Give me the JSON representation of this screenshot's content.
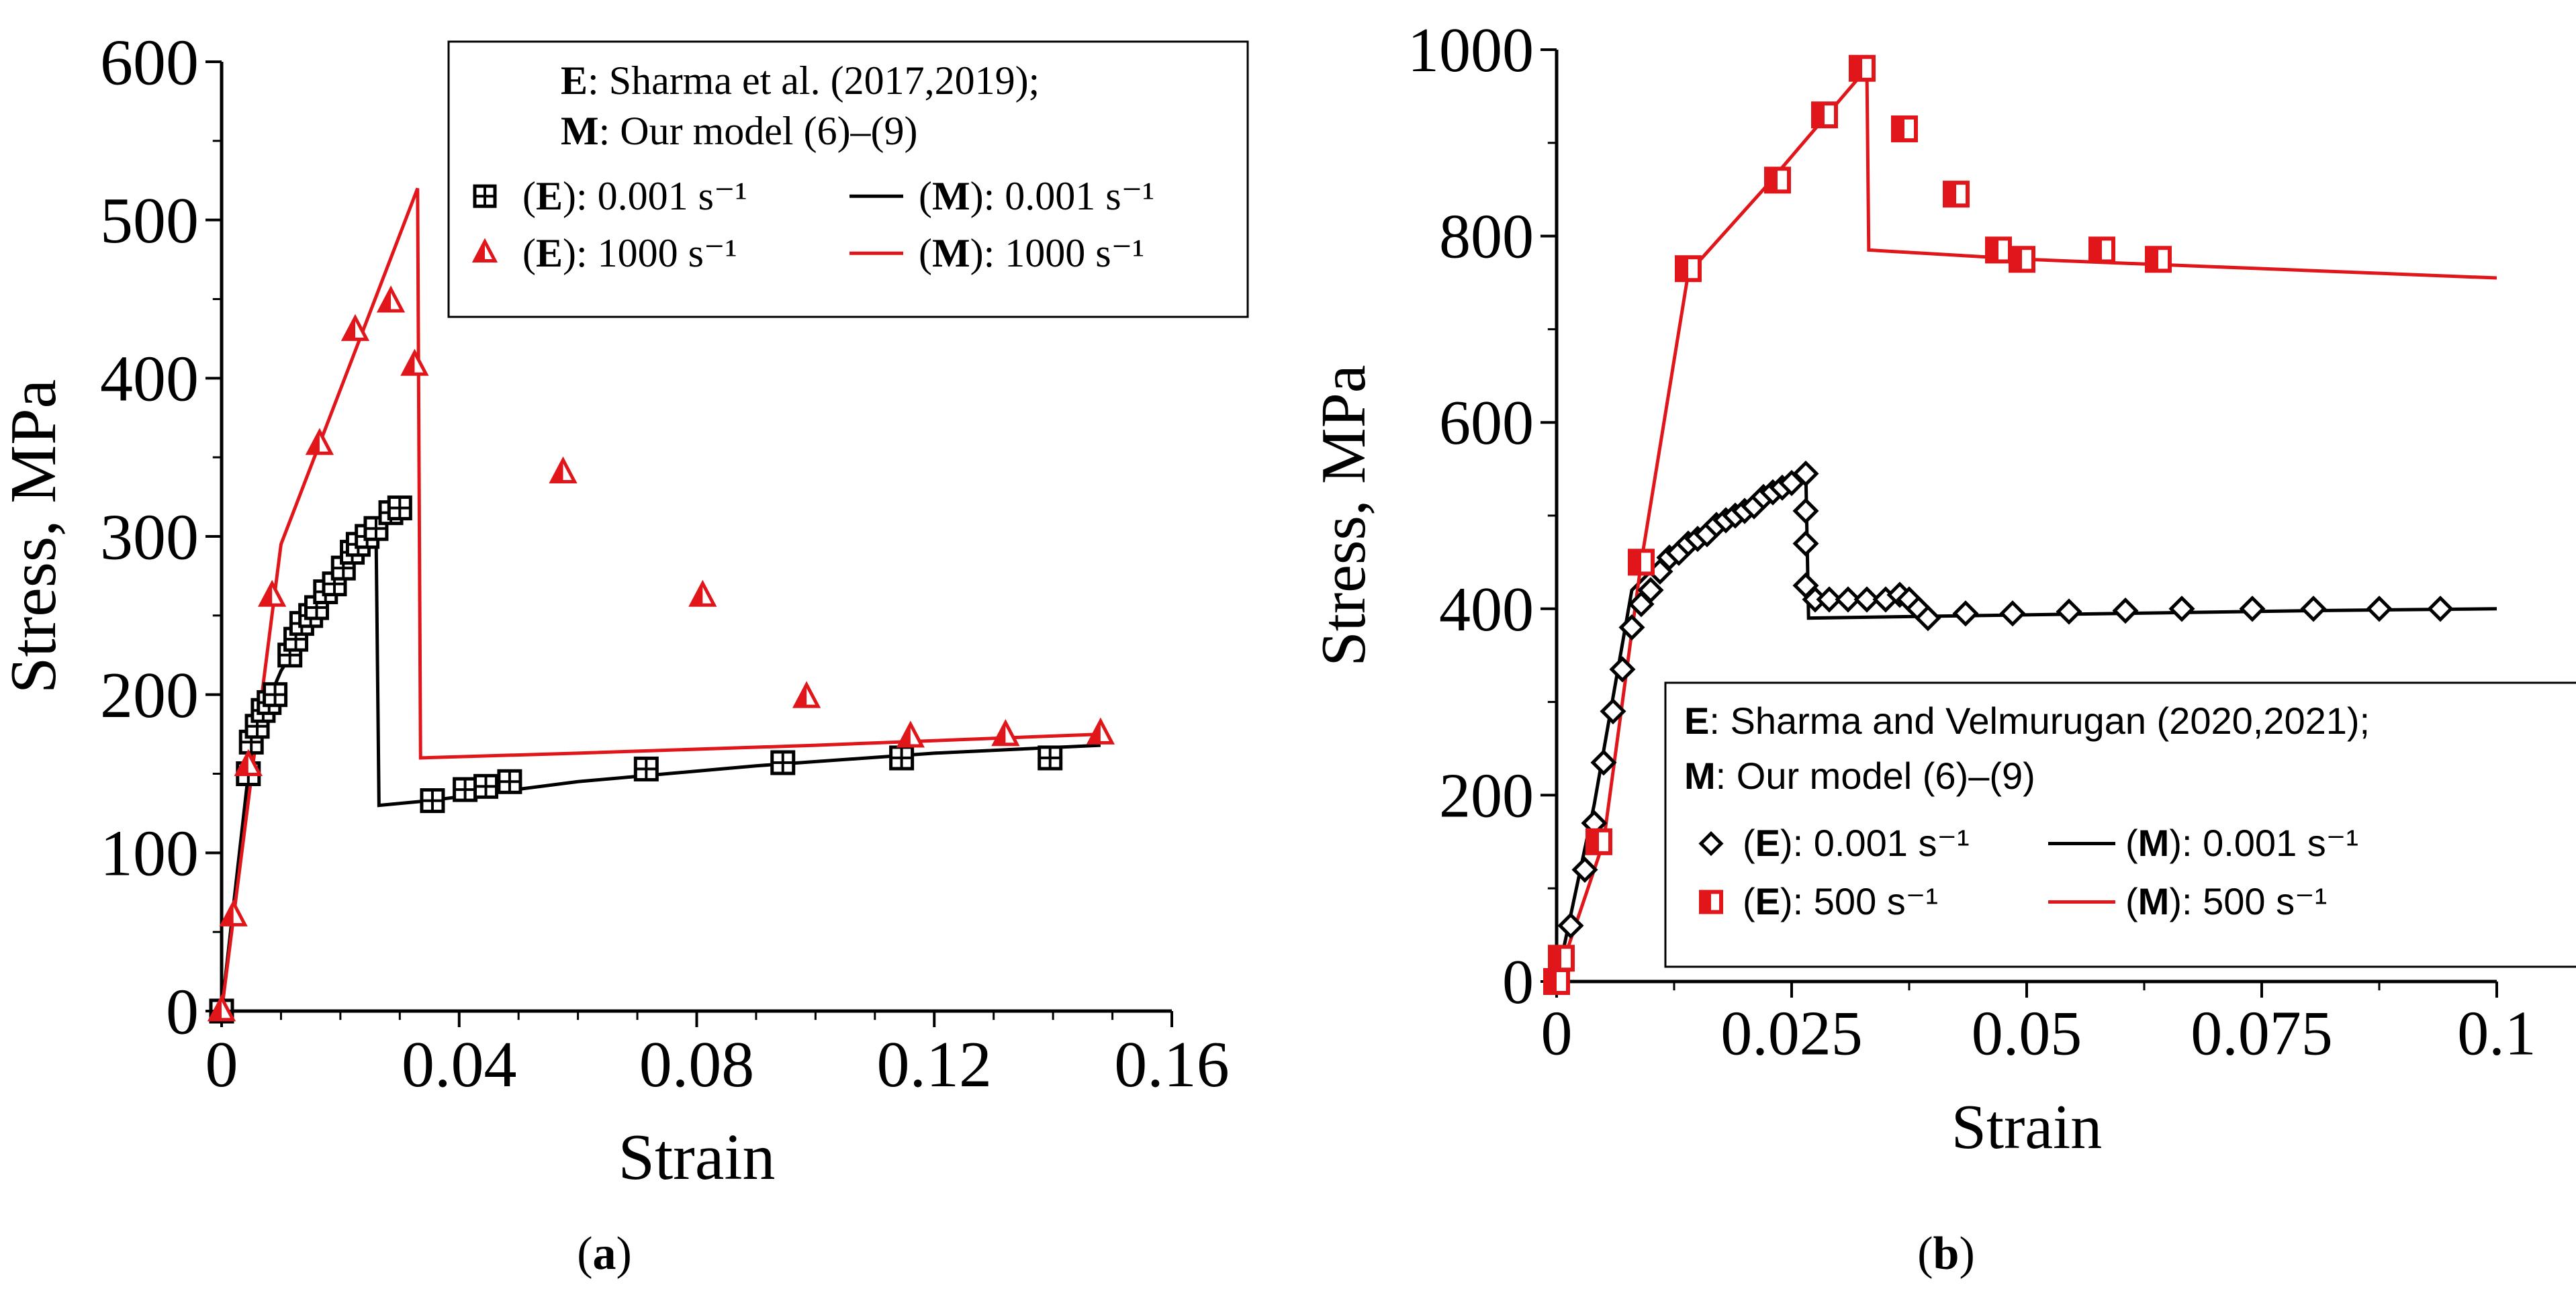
{
  "chart_data": [
    {
      "type": "scatter",
      "panel_label": "(a)",
      "xlabel": "Strain",
      "ylabel": "Stress, MPa",
      "xlim": [
        0,
        0.16
      ],
      "ylim": [
        0,
        600
      ],
      "xticks": [
        0,
        0.04,
        0.08,
        0.12,
        0.16
      ],
      "xtick_labels": [
        "0",
        "0.04",
        "0.08",
        "0.12",
        "0.16"
      ],
      "yticks": [
        0,
        100,
        200,
        300,
        400,
        500,
        600
      ],
      "ytick_labels": [
        "0",
        "100",
        "200",
        "300",
        "400",
        "500",
        "600"
      ],
      "legend": {
        "placement": "top-right",
        "header_lines": [
          {
            "bold": "E",
            "rest": ": Sharma et al. (2017,2019);"
          },
          {
            "bold": "M",
            "rest": ": Our model (6)–(9)"
          }
        ],
        "entries": [
          {
            "key": "E",
            "text": ": 0.001 s⁻¹",
            "marker": "boxplus",
            "color": "#000000"
          },
          {
            "key": "M",
            "text": ": 0.001 s⁻¹",
            "marker": "line",
            "color": "#000000"
          },
          {
            "key": "E",
            "text": ": 1000 s⁻¹",
            "marker": "triangle",
            "color": "#e0161b"
          },
          {
            "key": "M",
            "text": ": 1000 s⁻¹",
            "marker": "line",
            "color": "#e0161b"
          }
        ]
      },
      "series": [
        {
          "name": "(E): 0.001 s⁻¹",
          "kind": "points",
          "marker": "boxplus",
          "color": "#000000",
          "x": [
            0,
            0.0045,
            0.005,
            0.006,
            0.007,
            0.008,
            0.009,
            0.0115,
            0.0125,
            0.0135,
            0.015,
            0.016,
            0.0175,
            0.019,
            0.0205,
            0.022,
            0.023,
            0.0245,
            0.026,
            0.0285,
            0.03,
            0.0355,
            0.041,
            0.0445,
            0.0485,
            0.0715,
            0.0945,
            0.1145,
            0.1395
          ],
          "y": [
            0,
            150,
            170,
            180,
            190,
            195,
            200,
            225,
            235,
            245,
            250,
            255,
            265,
            270,
            280,
            290,
            295,
            300,
            305,
            315,
            318,
            133,
            140,
            142,
            145,
            153,
            157,
            160,
            160
          ]
        },
        {
          "name": "(E): 1000 s⁻¹",
          "kind": "points",
          "marker": "triangle",
          "color": "#e0161b",
          "x": [
            0,
            0.002,
            0.0045,
            0.0085,
            0.0165,
            0.0225,
            0.0285,
            0.0325,
            0.0575,
            0.081,
            0.0985,
            0.116,
            0.132,
            0.148
          ],
          "y": [
            0,
            60,
            155,
            262,
            358,
            430,
            448,
            408,
            340,
            262,
            198,
            173,
            174,
            175
          ]
        },
        {
          "name": "(M): 0.001 s⁻¹",
          "kind": "line",
          "color": "#000000",
          "x": [
            0,
            0.0045,
            0.006,
            0.01,
            0.015,
            0.02,
            0.026,
            0.0265,
            0.035,
            0.06,
            0.09,
            0.12,
            0.148
          ],
          "y": [
            0,
            150,
            180,
            215,
            245,
            275,
            305,
            130,
            133,
            145,
            155,
            163,
            168
          ]
        },
        {
          "name": "(M): 1000 s⁻¹",
          "kind": "line",
          "color": "#e0161b",
          "x": [
            0,
            0.01,
            0.033,
            0.0335,
            0.06,
            0.1,
            0.148
          ],
          "y": [
            0,
            295,
            520,
            160,
            163,
            168,
            175
          ]
        }
      ]
    },
    {
      "type": "scatter",
      "panel_label": "(b)",
      "xlabel": "Strain",
      "ylabel": "Stress, MPa",
      "xlim": [
        0,
        0.1
      ],
      "ylim": [
        0,
        1000
      ],
      "xticks": [
        0,
        0.025,
        0.05,
        0.075,
        0.1
      ],
      "xtick_labels": [
        "0",
        "0.025",
        "0.05",
        "0.075",
        "0.1"
      ],
      "yticks": [
        0,
        200,
        400,
        600,
        800,
        1000
      ],
      "ytick_labels": [
        "0",
        "200",
        "400",
        "600",
        "800",
        "1000"
      ],
      "legend": {
        "placement": "bottom-right",
        "header_lines": [
          {
            "bold": "E",
            "rest": ": Sharma and Velmurugan (2020,2021);"
          },
          {
            "bold": "M",
            "rest": ": Our model (6)–(9)"
          }
        ],
        "entries": [
          {
            "key": "E",
            "text": ": 0.001 s⁻¹",
            "marker": "diamond",
            "color": "#000000"
          },
          {
            "key": "M",
            "text": ": 0.001 s⁻¹",
            "marker": "line",
            "color": "#000000"
          },
          {
            "key": "E",
            "text": ": 500 s⁻¹",
            "marker": "halfsquare",
            "color": "#e0161b"
          },
          {
            "key": "M",
            "text": ": 500 s⁻¹",
            "marker": "line",
            "color": "#e0161b"
          }
        ]
      },
      "series": [
        {
          "name": "(E): 0.001 s⁻¹",
          "kind": "points",
          "marker": "diamond",
          "color": "#000000",
          "x": [
            0,
            0.0015,
            0.003,
            0.004,
            0.005,
            0.006,
            0.007,
            0.008,
            0.009,
            0.01,
            0.011,
            0.012,
            0.013,
            0.014,
            0.015,
            0.016,
            0.017,
            0.018,
            0.019,
            0.02,
            0.021,
            0.022,
            0.023,
            0.024,
            0.025,
            0.0265,
            0.0265,
            0.0265,
            0.0265,
            0.0275,
            0.029,
            0.031,
            0.033,
            0.035,
            0.0365,
            0.0375,
            0.0385,
            0.0395,
            0.0435,
            0.0485,
            0.0545,
            0.0605,
            0.0665,
            0.074,
            0.0805,
            0.0875,
            0.094
          ],
          "y": [
            0,
            60,
            120,
            170,
            235,
            290,
            335,
            380,
            405,
            420,
            440,
            455,
            460,
            470,
            475,
            480,
            490,
            495,
            500,
            505,
            510,
            520,
            525,
            530,
            535,
            545,
            505,
            470,
            425,
            410,
            410,
            410,
            410,
            410,
            415,
            410,
            400,
            390,
            395,
            395,
            397,
            398,
            400,
            400,
            400,
            400,
            400
          ]
        },
        {
          "name": "(E): 500 s⁻¹",
          "kind": "points",
          "marker": "halfsquare",
          "color": "#e0161b",
          "x": [
            0,
            0.0005,
            0.0045,
            0.009,
            0.014,
            0.0235,
            0.0285,
            0.0325,
            0.037,
            0.0425,
            0.047,
            0.0495,
            0.058,
            0.064
          ],
          "y": [
            0,
            25,
            150,
            450,
            765,
            860,
            930,
            980,
            915,
            845,
            785,
            775,
            785,
            775
          ]
        },
        {
          "name": "(M): 0.001 s⁻¹",
          "kind": "line",
          "color": "#000000",
          "x": [
            0,
            0.004,
            0.008,
            0.012,
            0.018,
            0.024,
            0.0265,
            0.0268,
            0.04,
            0.06,
            0.08,
            0.1
          ],
          "y": [
            0,
            190,
            420,
            460,
            495,
            530,
            550,
            390,
            392,
            395,
            398,
            400
          ]
        },
        {
          "name": "(M): 500 s⁻¹",
          "kind": "line",
          "color": "#e0161b",
          "x": [
            0,
            0.005,
            0.009,
            0.014,
            0.022,
            0.033,
            0.0332,
            0.05,
            0.075,
            0.1
          ],
          "y": [
            0,
            150,
            450,
            760,
            850,
            980,
            785,
            775,
            765,
            755
          ]
        }
      ]
    }
  ]
}
